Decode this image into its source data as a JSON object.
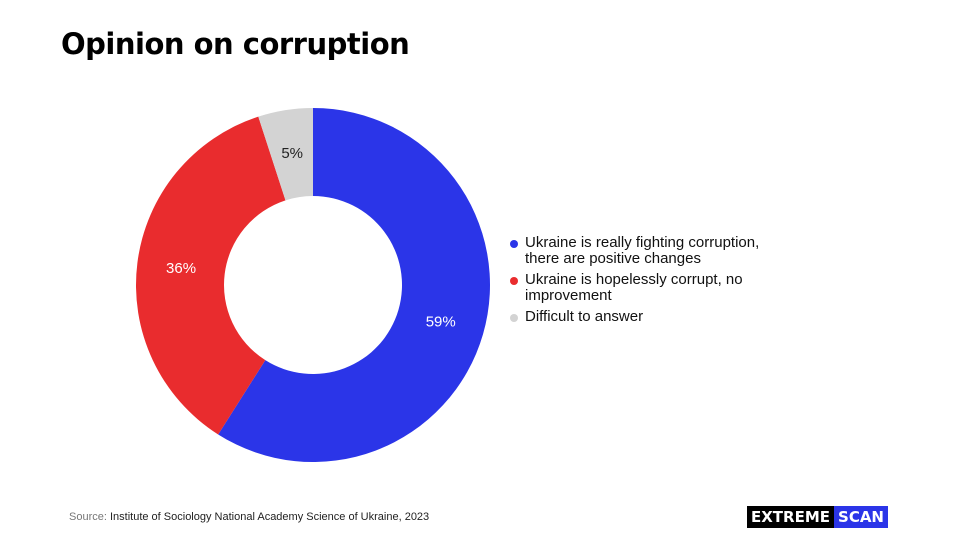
{
  "chart_data": {
    "type": "pie",
    "title": "Opinion on corruption",
    "donut": true,
    "slices": [
      {
        "label": "Ukraine is really fighting corruption,\nthere are positive changes",
        "value": 59,
        "value_label": "59%",
        "color": "#2b35e8"
      },
      {
        "label": "Ukraine is hopelessly corrupt, no\nimprovement",
        "value": 36,
        "value_label": "36%",
        "color": "#e92c2e"
      },
      {
        "label": "Difficult to answer",
        "value": 5,
        "value_label": "5%",
        "color": "#d3d3d3"
      }
    ],
    "legend_position": "right"
  },
  "source": {
    "prefix": "Source:",
    "text": "Institute of Sociology National Academy Science of Ukraine, 2023"
  },
  "logo": {
    "part1": "EXTREME",
    "part2": "SCAN"
  }
}
